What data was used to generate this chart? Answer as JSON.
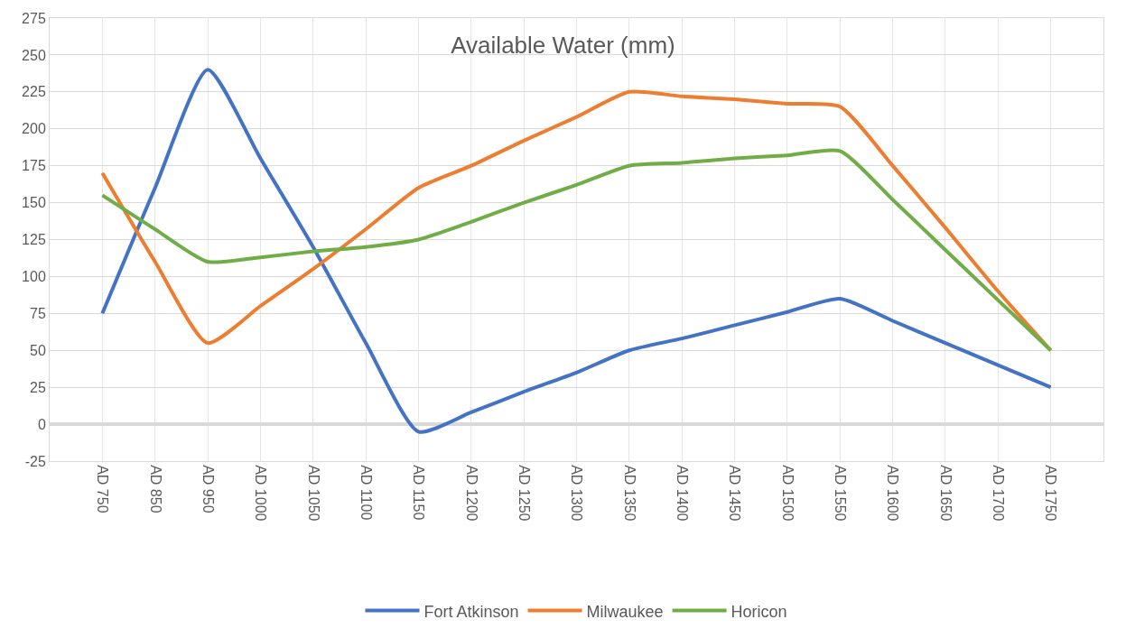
{
  "chart_data": {
    "type": "line",
    "title": "Available Water (mm)",
    "categories": [
      "AD 750",
      "AD 850",
      "AD 950",
      "AD 1000",
      "AD 1050",
      "AD 1100",
      "AD 1150",
      "AD 1200",
      "AD 1250",
      "AD 1300",
      "AD 1350",
      "AD 1400",
      "AD 1450",
      "AD 1500",
      "AD 1550",
      "AD 1600",
      "AD 1650",
      "AD 1700",
      "AD 1750"
    ],
    "series": [
      {
        "name": "Fort Atkinson",
        "color": "#4472c4",
        "values": [
          75,
          160,
          240,
          180,
          120,
          55,
          -5,
          8,
          22,
          35,
          50,
          58,
          67,
          76,
          85,
          70,
          55,
          40,
          25
        ]
      },
      {
        "name": "Milwaukee",
        "color": "#ed7d31",
        "values": [
          170,
          110,
          55,
          80,
          105,
          132,
          160,
          175,
          192,
          208,
          225,
          222,
          220,
          217,
          215,
          175,
          133,
          90,
          50
        ]
      },
      {
        "name": "Horicon",
        "color": "#70ad47",
        "values": [
          155,
          132,
          110,
          113,
          117,
          120,
          125,
          137,
          150,
          162,
          175,
          177,
          180,
          182,
          185,
          152,
          118,
          84,
          50
        ]
      }
    ],
    "ylim": [
      -25,
      275
    ],
    "yticks": [
      -25,
      0,
      25,
      50,
      75,
      100,
      125,
      150,
      175,
      200,
      225,
      250,
      275
    ],
    "grid": true,
    "legend": "bottom",
    "marker": "none",
    "line_style": "solid"
  }
}
